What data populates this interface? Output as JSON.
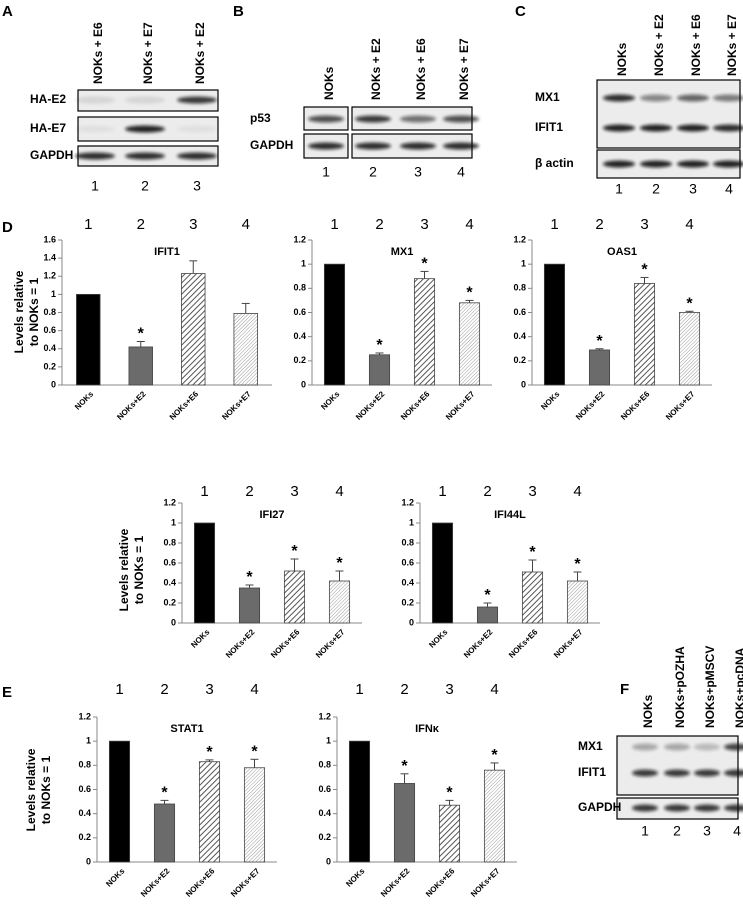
{
  "panel_letters": [
    "A",
    "B",
    "C",
    "D",
    "E",
    "F"
  ],
  "bar_colors": [
    "#000000",
    "#6b6b6b",
    "#555555",
    "#9a9a9a"
  ],
  "bar_patterns": [
    "solid",
    "solid",
    "hatch",
    "fine-hatch"
  ],
  "blots": [
    {
      "lanes": [
        "NOKs + E6",
        "NOKs + E7",
        "NOKs + E2"
      ],
      "rows": [
        "HA-E2",
        "HA-E7",
        "GAPDH"
      ],
      "lane_numbers": [
        "1",
        "2",
        "3"
      ]
    },
    {
      "lanes": [
        "NOKs",
        "NOKs + E2",
        "NOKs + E6",
        "NOKs + E7"
      ],
      "rows": [
        "p53",
        "GAPDH"
      ],
      "lane_numbers": [
        "1",
        "2",
        "3",
        "4"
      ]
    },
    {
      "lanes": [
        "NOKs",
        "NOKs + E2",
        "NOKs + E6",
        "NOKs + E7"
      ],
      "rows": [
        "MX1",
        "IFIT1",
        "β actin"
      ],
      "lane_numbers": [
        "1",
        "2",
        "3",
        "4"
      ]
    },
    {
      "lanes": [
        "NOKs",
        "NOKs+pOZHA",
        "NOKs+pMSCV",
        "NOKs+pcDNA"
      ],
      "rows": [
        "MX1",
        "IFIT1",
        "GAPDH"
      ],
      "lane_numbers": [
        "1",
        "2",
        "3",
        "4"
      ]
    }
  ],
  "chart_data": [
    {
      "type": "bar",
      "title": "IFIT1",
      "ylabel": [
        "Levels relative",
        "to NOKs = 1"
      ],
      "lane_numbers": [
        "1",
        "2",
        "3",
        "4"
      ],
      "categories": [
        "NOKs",
        "NOKs+E2",
        "NOKs+E6",
        "NOKs+E7"
      ],
      "values": [
        1,
        0.42,
        1.23,
        0.79
      ],
      "errors": [
        0,
        0.06,
        0.14,
        0.11
      ],
      "stars": [
        null,
        "*",
        null,
        null
      ],
      "ylim": [
        0,
        1.6
      ],
      "yticks": [
        0,
        0.2,
        0.4,
        0.6,
        0.8,
        1,
        1.2,
        1.4,
        1.6
      ]
    },
    {
      "type": "bar",
      "title": "MX1",
      "lane_numbers": [
        "1",
        "2",
        "3",
        "4"
      ],
      "categories": [
        "NOKs",
        "NOKs+E2",
        "NOKs+E6",
        "NOKs+E7"
      ],
      "values": [
        1,
        0.25,
        0.88,
        0.68
      ],
      "errors": [
        0,
        0.015,
        0.06,
        0.02
      ],
      "stars": [
        null,
        "*",
        "*",
        "*"
      ],
      "ylim": [
        0,
        1.2
      ],
      "yticks": [
        0,
        0.2,
        0.4,
        0.6,
        0.8,
        1,
        1.2
      ]
    },
    {
      "type": "bar",
      "title": "OAS1",
      "lane_numbers": [
        "1",
        "2",
        "3",
        "4"
      ],
      "categories": [
        "NOKs",
        "NOKs+E2",
        "NOKs+E6",
        "NOKs+E7"
      ],
      "values": [
        1,
        0.29,
        0.84,
        0.6
      ],
      "errors": [
        0,
        0.01,
        0.05,
        0.01
      ],
      "stars": [
        null,
        "*",
        "*",
        "*"
      ],
      "ylim": [
        0,
        1.2
      ],
      "yticks": [
        0,
        0.2,
        0.4,
        0.6,
        0.8,
        1,
        1.2
      ]
    },
    {
      "type": "bar",
      "title": "IFI27",
      "ylabel": [
        "Levels relative",
        "to NOKs = 1"
      ],
      "lane_numbers": [
        "1",
        "2",
        "3",
        "4"
      ],
      "categories": [
        "NOKs",
        "NOKs+E2",
        "NOKs+E6",
        "NOKs+E7"
      ],
      "values": [
        1,
        0.35,
        0.52,
        0.42
      ],
      "errors": [
        0,
        0.03,
        0.12,
        0.1
      ],
      "stars": [
        null,
        "*",
        "*",
        "*"
      ],
      "ylim": [
        0,
        1.2
      ],
      "yticks": [
        0,
        0.2,
        0.4,
        0.6,
        0.8,
        1,
        1.2
      ]
    },
    {
      "type": "bar",
      "title": "IFI44L",
      "lane_numbers": [
        "1",
        "2",
        "3",
        "4"
      ],
      "categories": [
        "NOKs",
        "NOKs+E2",
        "NOKs+E6",
        "NOKs+E7"
      ],
      "values": [
        1,
        0.16,
        0.51,
        0.42
      ],
      "errors": [
        0,
        0.04,
        0.12,
        0.09
      ],
      "stars": [
        null,
        "*",
        "*",
        "*"
      ],
      "ylim": [
        0,
        1.2
      ],
      "yticks": [
        0,
        0.2,
        0.4,
        0.6,
        0.8,
        1,
        1.2
      ]
    },
    {
      "type": "bar",
      "title": "STAT1",
      "ylabel": [
        "Levels relative",
        "to NOKs = 1"
      ],
      "lane_numbers": [
        "1",
        "2",
        "3",
        "4"
      ],
      "categories": [
        "NOKs",
        "NOKs+E2",
        "NOKs+E6",
        "NOKs+E7"
      ],
      "values": [
        1,
        0.48,
        0.83,
        0.78
      ],
      "errors": [
        0,
        0.03,
        0.015,
        0.07
      ],
      "stars": [
        null,
        "*",
        "*",
        "*"
      ],
      "ylim": [
        0,
        1.2
      ],
      "yticks": [
        0,
        0.2,
        0.4,
        0.6,
        0.8,
        1,
        1.2
      ]
    },
    {
      "type": "bar",
      "title": "IFNκ",
      "lane_numbers": [
        "1",
        "2",
        "3",
        "4"
      ],
      "categories": [
        "NOKs",
        "NOKs+E2",
        "NOKs+E6",
        "NOKs+E7"
      ],
      "values": [
        1,
        0.65,
        0.47,
        0.76
      ],
      "errors": [
        0,
        0.08,
        0.04,
        0.06
      ],
      "stars": [
        null,
        "*",
        "*",
        "*"
      ],
      "ylim": [
        0,
        1.2
      ],
      "yticks": [
        0,
        0.2,
        0.4,
        0.6,
        0.8,
        1,
        1.2
      ]
    }
  ]
}
